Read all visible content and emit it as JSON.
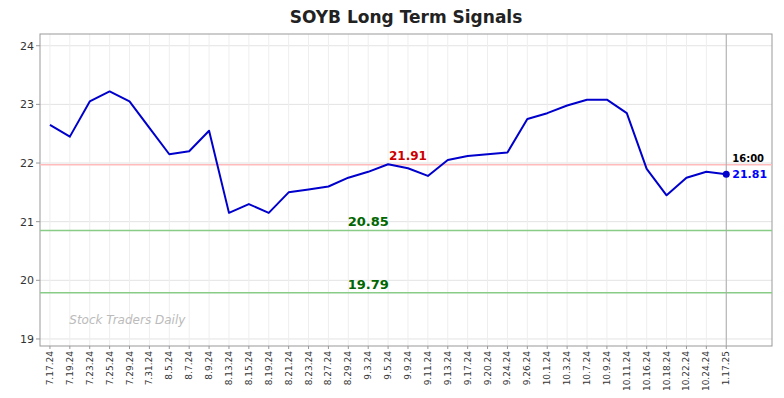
{
  "chart_data": {
    "type": "line",
    "title": "SOYB Long Term Signals",
    "categories": [
      "7.17.24",
      "7.19.24",
      "7.23.24",
      "7.25.24",
      "7.29.24",
      "7.31.24",
      "8.5.24",
      "8.7.24",
      "8.9.24",
      "8.13.24",
      "8.15.24",
      "8.19.24",
      "8.21.24",
      "8.23.24",
      "8.27.24",
      "8.29.24",
      "9.3.24",
      "9.5.24",
      "9.9.24",
      "9.11.24",
      "9.13.24",
      "9.17.24",
      "9.20.24",
      "9.24.24",
      "9.26.24",
      "10.1.24",
      "10.3.24",
      "10.7.24",
      "10.9.24",
      "10.11.24",
      "10.16.24",
      "10.18.24",
      "10.22.24",
      "10.24.24",
      "1.17.25"
    ],
    "values": [
      22.65,
      22.45,
      23.05,
      23.22,
      23.05,
      22.6,
      22.15,
      22.2,
      22.55,
      21.15,
      21.3,
      21.15,
      21.5,
      21.55,
      21.6,
      21.75,
      21.85,
      21.98,
      21.91,
      21.78,
      22.05,
      22.12,
      22.15,
      22.18,
      22.75,
      22.85,
      22.98,
      23.08,
      23.08,
      22.85,
      21.9,
      21.45,
      21.75,
      21.85,
      21.81
    ],
    "color": "#0000cc",
    "ylim": [
      18.88,
      24.2
    ],
    "yticks": [
      19,
      20,
      21,
      22,
      23,
      24
    ],
    "grid": true,
    "reference_lines": [
      {
        "value": 21.97,
        "color": "#ffbbbb"
      },
      {
        "value": 20.85,
        "color": "#88cc88",
        "label": "20.85",
        "label_color": "#006600"
      },
      {
        "value": 19.79,
        "color": "#88cc88",
        "label": "19.79",
        "label_color": "#006600"
      }
    ],
    "marker_line": {
      "category": "1.17.25",
      "color": "#aaaaaa"
    },
    "annotations": [
      {
        "text": "21.91",
        "category": "9.9.24",
        "value": 21.91,
        "color": "#cc0000"
      },
      {
        "text": "16:00",
        "category": "1.17.25",
        "color": "#000000"
      },
      {
        "text": "21.81",
        "category": "1.17.25",
        "value": 21.81,
        "color": "#0000ff"
      }
    ],
    "watermark": {
      "text": "Stock Traders Daily",
      "color": "#bbbbbb"
    }
  }
}
